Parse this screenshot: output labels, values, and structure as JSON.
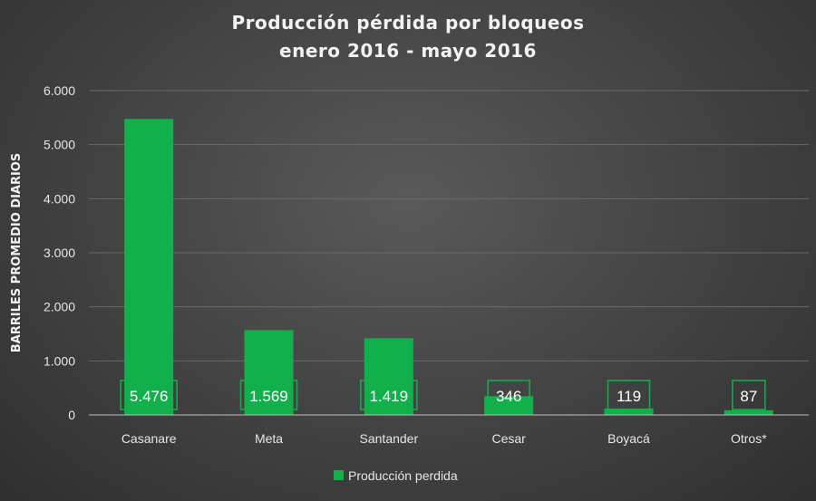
{
  "colors": {
    "bar": "#12b04a",
    "label_border": "#12b04a",
    "grid": "#6a6a6a",
    "axis": "#bfbfbf"
  },
  "chart_data": {
    "type": "bar",
    "title_line1": "Producción pérdida por bloqueos",
    "title_line2": "enero 2016 - mayo 2016",
    "ylabel": "BARRILES PROMEDIO DIARIOS",
    "xlabel": "",
    "categories": [
      "Casanare",
      "Meta",
      "Santander",
      "Cesar",
      "Boyacá",
      "Otros*"
    ],
    "series": [
      {
        "name": "Producción perdida",
        "values": [
          5476,
          1569,
          1419,
          346,
          119,
          87
        ],
        "data_labels": [
          "5.476",
          "1.569",
          "1.419",
          "346",
          "119",
          "87"
        ]
      }
    ],
    "ylim": [
      0,
      6000
    ],
    "yticks": [
      0,
      1000,
      2000,
      3000,
      4000,
      5000,
      6000
    ],
    "ytick_labels": [
      "0",
      "1.000",
      "2.000",
      "3.000",
      "4.000",
      "5.000",
      "6.000"
    ],
    "grid": true,
    "legend_position": "bottom"
  }
}
